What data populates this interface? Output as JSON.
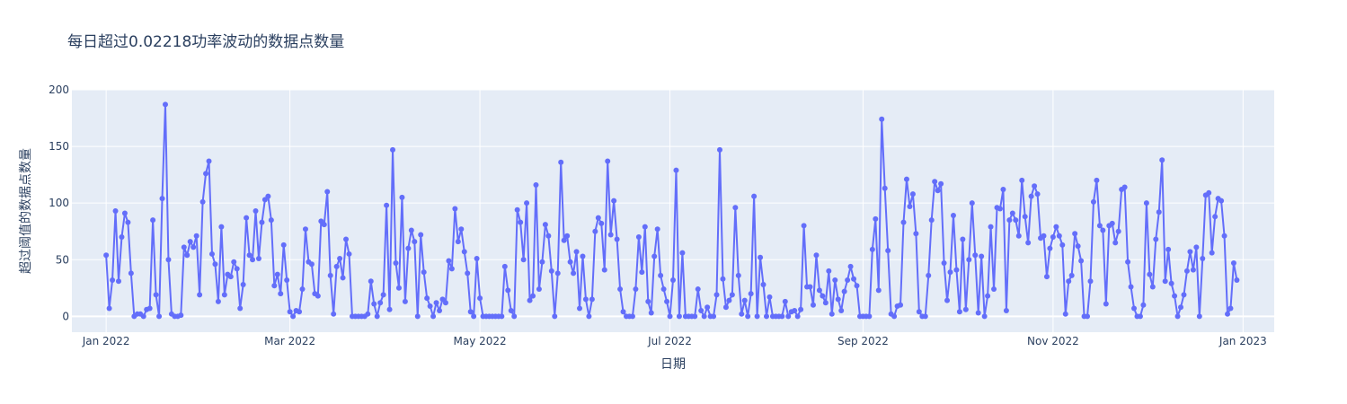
{
  "chart_data": {
    "type": "line",
    "mode": "lines+markers",
    "title": "每日超过0.02218功率波动的数据点数量",
    "xlabel": "日期",
    "ylabel": "超过阈值的数据点数量",
    "x_start": "2022-01-01",
    "x_end": "2022-12-31",
    "xlim": [
      "2021-12-21",
      "2023-01-11"
    ],
    "ylim": [
      -14,
      200
    ],
    "y_ticks": [
      0,
      50,
      100,
      150,
      200
    ],
    "x_ticks": [
      {
        "date": "2022-01-01",
        "label": "Jan 2022"
      },
      {
        "date": "2022-03-01",
        "label": "Mar 2022"
      },
      {
        "date": "2022-05-01",
        "label": "May 2022"
      },
      {
        "date": "2022-07-01",
        "label": "Jul 2022"
      },
      {
        "date": "2022-09-01",
        "label": "Sep 2022"
      },
      {
        "date": "2022-11-01",
        "label": "Nov 2022"
      },
      {
        "date": "2023-01-01",
        "label": "Jan 2023"
      }
    ],
    "grid": true,
    "colors": {
      "line": "#636efa",
      "plot_bg": "#e5ecf6",
      "grid": "#ffffff",
      "text": "#2a3f5f"
    },
    "values": [
      54,
      7,
      32,
      93,
      31,
      70,
      91,
      83,
      38,
      0,
      2,
      2,
      0,
      6,
      7,
      85,
      19,
      0,
      104,
      187,
      50,
      2,
      0,
      0,
      1,
      61,
      54,
      66,
      61,
      71,
      19,
      101,
      126,
      137,
      55,
      46,
      13,
      79,
      19,
      37,
      35,
      48,
      42,
      7,
      28,
      87,
      54,
      50,
      93,
      51,
      83,
      103,
      106,
      85,
      27,
      37,
      20,
      63,
      32,
      4,
      0,
      5,
      4,
      24,
      77,
      48,
      46,
      20,
      18,
      84,
      81,
      110,
      36,
      2,
      44,
      51,
      34,
      68,
      55,
      0,
      0,
      0,
      0,
      0,
      2,
      31,
      11,
      0,
      12,
      19,
      98,
      6,
      147,
      47,
      25,
      105,
      13,
      60,
      76,
      66,
      0,
      72,
      39,
      16,
      9,
      0,
      12,
      5,
      15,
      12,
      49,
      42,
      95,
      66,
      77,
      57,
      38,
      4,
      0,
      51,
      16,
      0,
      0,
      0,
      0,
      0,
      0,
      0,
      44,
      23,
      5,
      0,
      94,
      83,
      50,
      100,
      14,
      18,
      116,
      24,
      48,
      81,
      71,
      40,
      0,
      38,
      136,
      67,
      71,
      48,
      38,
      57,
      7,
      53,
      15,
      0,
      15,
      75,
      87,
      82,
      41,
      137,
      72,
      102,
      68,
      24,
      4,
      0,
      0,
      0,
      24,
      70,
      39,
      79,
      13,
      3,
      53,
      77,
      36,
      24,
      13,
      0,
      32,
      129,
      0,
      56,
      0,
      0,
      0,
      0,
      24,
      5,
      0,
      8,
      0,
      0,
      19,
      147,
      33,
      8,
      14,
      19,
      96,
      36,
      2,
      14,
      0,
      20,
      106,
      0,
      52,
      28,
      0,
      17,
      0,
      0,
      0,
      0,
      13,
      0,
      4,
      5,
      0,
      6,
      80,
      26,
      26,
      10,
      54,
      23,
      18,
      12,
      40,
      2,
      32,
      15,
      5,
      22,
      32,
      44,
      33,
      27,
      0,
      0,
      0,
      0,
      59,
      86,
      23,
      174,
      113,
      58,
      2,
      0,
      9,
      10,
      83,
      121,
      97,
      108,
      73,
      4,
      0,
      0,
      36,
      85,
      119,
      111,
      117,
      47,
      14,
      39,
      89,
      41,
      4,
      68,
      6,
      50,
      100,
      54,
      3,
      53,
      0,
      18,
      79,
      24,
      96,
      95,
      112,
      5,
      85,
      91,
      85,
      71,
      120,
      88,
      65,
      106,
      115,
      108,
      69,
      71,
      35,
      60,
      70,
      79,
      71,
      63,
      2,
      31,
      36,
      73,
      62,
      49,
      0,
      0,
      31,
      101,
      120,
      80,
      76,
      11,
      80,
      82,
      65,
      75,
      112,
      114,
      48,
      26,
      7,
      0,
      0,
      10,
      100,
      37,
      26,
      68,
      92,
      138,
      31,
      59,
      29,
      18,
      0,
      8,
      19,
      40,
      57,
      41,
      61,
      0,
      51,
      107,
      109,
      56,
      88,
      104,
      102,
      71,
      2,
      7,
      47,
      32
    ]
  }
}
